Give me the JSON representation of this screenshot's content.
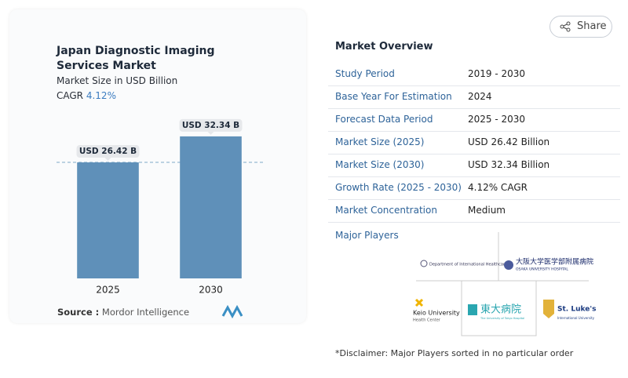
{
  "chart_data": {
    "type": "bar",
    "title": "Japan Diagnostic Imaging Services Market",
    "subtitle": "Market Size in USD Billion",
    "cagr_label": "CAGR",
    "cagr": "4.12%",
    "categories": [
      "2025",
      "2030"
    ],
    "values": [
      26.42,
      32.34
    ],
    "value_labels": [
      "USD 26.42 B",
      "USD 32.34 B"
    ],
    "color": "#5f90b9",
    "ylim": [
      0,
      40
    ]
  },
  "source": {
    "label": "Source :",
    "text": "Mordor Intelligence"
  },
  "share": "Share",
  "overview": {
    "title": "Market Overview",
    "rows": [
      [
        "Study Period",
        "2019 - 2030"
      ],
      [
        "Base Year For Estimation",
        "2024"
      ],
      [
        "Forecast Data Period",
        "2025 - 2030"
      ],
      [
        "Market Size (2025)",
        "USD 26.42 Billion"
      ],
      [
        "Market Size (2030)",
        "USD 32.34 Billion"
      ],
      [
        "Growth Rate (2025 - 2030)",
        "4.12% CAGR"
      ],
      [
        "Market Concentration",
        "Medium"
      ]
    ]
  },
  "major_players": {
    "title": "Major Players",
    "logos": [
      {
        "name": "Department of International Healthcare"
      },
      {
        "name": "大阪大学医学部附属病院",
        "sub": "OSAKA UNIVERSITY HOSPITAL"
      },
      {
        "name": "Keio University",
        "sub": "Health Center"
      },
      {
        "name": "東大病院",
        "sub": "The University of Tokyo Hospital"
      },
      {
        "name": "St. Luke's",
        "sub": "International University"
      }
    ]
  },
  "disclaimer": "*Disclaimer: Major Players sorted in no particular order"
}
